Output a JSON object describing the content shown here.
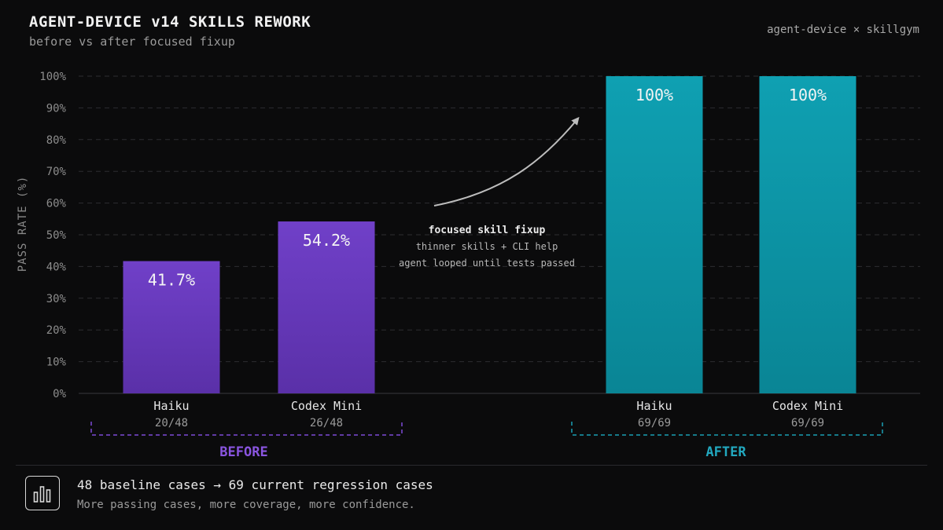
{
  "header": {
    "title": "AGENT-DEVICE v14 SKILLS REWORK",
    "subtitle": "before vs after focused fixup",
    "brand": "agent-device × skillgym"
  },
  "annotation": {
    "line1": "focused skill fixup",
    "line2": "thinner skills + CLI help",
    "line3": "agent looped until tests passed"
  },
  "groups": {
    "before": "BEFORE",
    "after": "AFTER"
  },
  "colors": {
    "before": "#6a3ac0",
    "after": "#0e9aaa",
    "before_label": "#8a55e0",
    "after_label": "#22a8bf"
  },
  "footer": {
    "icon": "bar-chart-icon",
    "main": "48 baseline cases → 69 current regression cases",
    "sub": "More passing cases, more coverage, more confidence."
  },
  "chart_data": {
    "type": "bar",
    "ylabel": "PASS RATE (%)",
    "ylim": [
      0,
      100
    ],
    "yticks": [
      "0%",
      "10%",
      "20%",
      "30%",
      "40%",
      "50%",
      "60%",
      "70%",
      "80%",
      "90%",
      "100%"
    ],
    "grid": true,
    "bars": [
      {
        "category": "Haiku",
        "detail": "20/48",
        "value": 41.7,
        "label": "41.7%",
        "group": "before"
      },
      {
        "category": "Codex Mini",
        "detail": "26/48",
        "value": 54.2,
        "label": "54.2%",
        "group": "before"
      },
      {
        "category": "Haiku",
        "detail": "69/69",
        "value": 100,
        "label": "100%",
        "group": "after"
      },
      {
        "category": "Codex Mini",
        "detail": "69/69",
        "value": 100,
        "label": "100%",
        "group": "after"
      }
    ]
  }
}
